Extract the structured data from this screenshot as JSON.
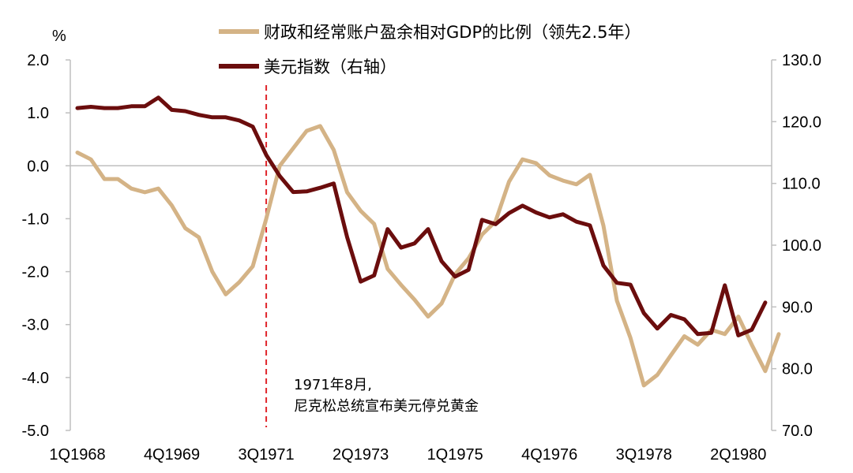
{
  "chart_data": {
    "type": "line",
    "y_unit_left": "%",
    "title": "",
    "xlabel": "",
    "ylabel": "",
    "ylim_left": [
      -5,
      2
    ],
    "ylim_right": [
      70,
      130
    ],
    "left_ticks": [
      "2.0",
      "1.0",
      "0.0",
      "-1.0",
      "-2.0",
      "-3.0",
      "-4.0",
      "-5.0"
    ],
    "right_ticks": [
      "130.0",
      "120.0",
      "110.0",
      "100.0",
      "90.0",
      "80.0",
      "70.0"
    ],
    "x_tick_labels": [
      "1Q1968",
      "4Q1969",
      "3Q1971",
      "2Q1973",
      "1Q1975",
      "4Q1976",
      "3Q1978",
      "2Q1980"
    ],
    "x_tick_index": [
      0,
      7,
      14,
      21,
      28,
      35,
      42,
      49
    ],
    "gridlines": false,
    "legend_position": "top",
    "annotation": {
      "index": 14,
      "line1": "1971年8月,",
      "line2": "尼克松总统宣布美元停兑黄金",
      "color": "#e0242a"
    },
    "series": [
      {
        "name": "财政和经常账户盈余相对GDP的比例（领先2.5年）",
        "axis": "left",
        "color": "#d4b386",
        "values": [
          0.25,
          0.12,
          -0.25,
          -0.25,
          -0.43,
          -0.5,
          -0.43,
          -0.75,
          -1.18,
          -1.35,
          -2.0,
          -2.43,
          -2.2,
          -1.9,
          -1.0,
          0.0,
          0.33,
          0.66,
          0.75,
          0.3,
          -0.5,
          -0.85,
          -1.1,
          -1.95,
          -2.25,
          -2.53,
          -2.85,
          -2.6,
          -2.05,
          -1.75,
          -1.3,
          -1.05,
          -0.3,
          0.12,
          0.05,
          -0.18,
          -0.28,
          -0.35,
          -0.17,
          -1.13,
          -2.55,
          -3.25,
          -4.15,
          -3.95,
          -3.58,
          -3.22,
          -3.38,
          -3.1,
          -3.18,
          -2.85,
          -3.38,
          -3.88,
          -3.18
        ]
      },
      {
        "name": "美元指数（右轴）",
        "axis": "right",
        "color": "#6b0d0d",
        "values": [
          122.2,
          122.4,
          122.2,
          122.2,
          122.5,
          122.5,
          123.9,
          121.9,
          121.7,
          121.1,
          120.7,
          120.7,
          120.2,
          119.2,
          114.6,
          111.2,
          108.6,
          108.7,
          109.3,
          110.0,
          101.3,
          94.1,
          95.1,
          102.6,
          99.6,
          100.3,
          102.6,
          97.4,
          94.9,
          96.0,
          104.1,
          103.4,
          105.2,
          106.4,
          105.3,
          104.5,
          105.0,
          103.8,
          103.2,
          96.7,
          93.9,
          93.6,
          89.0,
          86.5,
          88.7,
          88.0,
          85.6,
          85.8,
          93.5,
          85.4,
          86.3,
          90.7
        ]
      }
    ]
  }
}
